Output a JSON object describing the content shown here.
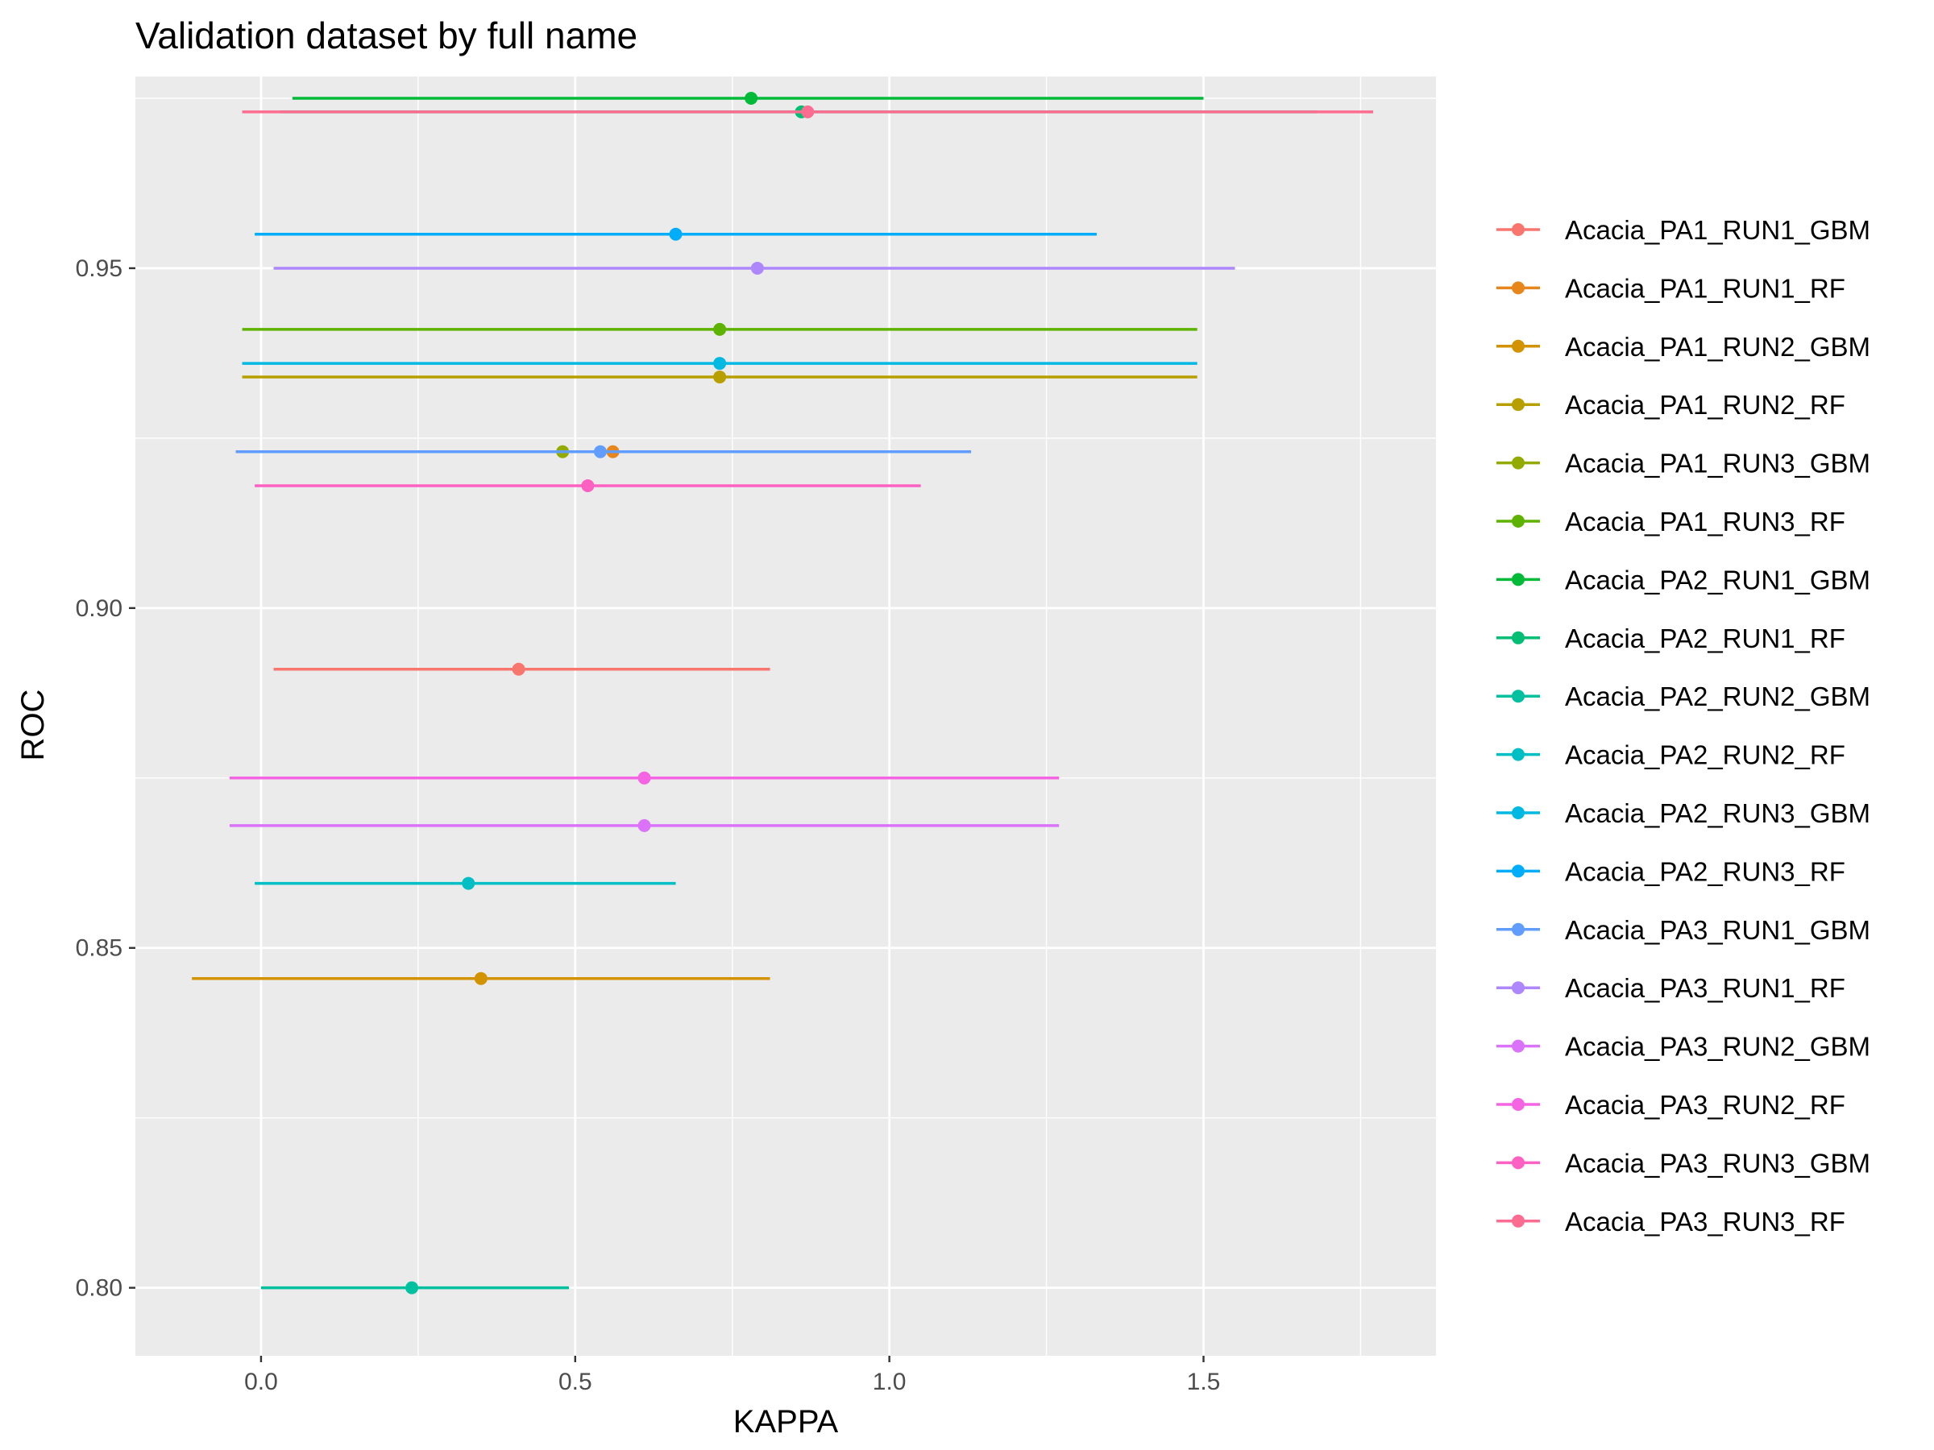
{
  "chart_data": {
    "type": "scatter",
    "title": "Validation dataset by full name",
    "xlabel": "KAPPA",
    "ylabel": "ROC",
    "xlim": [
      -0.2,
      1.87
    ],
    "ylim": [
      0.79,
      0.9782
    ],
    "x_ticks": [
      0.0,
      0.5,
      1.0,
      1.5
    ],
    "x_tick_labels": [
      "0.0",
      "0.5",
      "1.0",
      "1.5"
    ],
    "y_ticks": [
      0.8,
      0.85,
      0.9,
      0.95
    ],
    "y_tick_labels": [
      "0.80",
      "0.85",
      "0.90",
      "0.95"
    ],
    "grid": true,
    "legend_position": "right",
    "error_bars": "horizontal",
    "series": [
      {
        "name": "Acacia_PA1_RUN1_GBM",
        "color": "#F8766D",
        "kappa": 0.41,
        "roc": 0.891,
        "xmin": 0.02,
        "xmax": 0.81
      },
      {
        "name": "Acacia_PA1_RUN1_RF",
        "color": "#E7861B",
        "kappa": 0.56,
        "roc": 0.923,
        "xmin": -0.04,
        "xmax": 1.13
      },
      {
        "name": "Acacia_PA1_RUN2_GBM",
        "color": "#D39200",
        "kappa": 0.35,
        "roc": 0.8455,
        "xmin": -0.11,
        "xmax": 0.81
      },
      {
        "name": "Acacia_PA1_RUN2_RF",
        "color": "#B79F00",
        "kappa": 0.73,
        "roc": 0.934,
        "xmin": -0.03,
        "xmax": 1.49
      },
      {
        "name": "Acacia_PA1_RUN3_GBM",
        "color": "#93AA00",
        "kappa": 0.48,
        "roc": 0.923,
        "xmin": -0.04,
        "xmax": 1.13
      },
      {
        "name": "Acacia_PA1_RUN3_RF",
        "color": "#5EB300",
        "kappa": 0.73,
        "roc": 0.941,
        "xmin": -0.03,
        "xmax": 1.49
      },
      {
        "name": "Acacia_PA2_RUN1_GBM",
        "color": "#00BA38",
        "kappa": 0.78,
        "roc": 0.975,
        "xmin": 0.05,
        "xmax": 1.5
      },
      {
        "name": "Acacia_PA2_RUN1_RF",
        "color": "#00BF74",
        "kappa": 0.86,
        "roc": 0.973,
        "xmin": 0.03,
        "xmax": 1.68
      },
      {
        "name": "Acacia_PA2_RUN2_GBM",
        "color": "#00C19F",
        "kappa": 0.24,
        "roc": 0.8,
        "xmin": 0.0,
        "xmax": 0.49
      },
      {
        "name": "Acacia_PA2_RUN2_RF",
        "color": "#00BFC4",
        "kappa": 0.33,
        "roc": 0.8595,
        "xmin": -0.01,
        "xmax": 0.66
      },
      {
        "name": "Acacia_PA2_RUN3_GBM",
        "color": "#00B9E3",
        "kappa": 0.73,
        "roc": 0.936,
        "xmin": -0.03,
        "xmax": 1.49
      },
      {
        "name": "Acacia_PA2_RUN3_RF",
        "color": "#00ADFA",
        "kappa": 0.66,
        "roc": 0.955,
        "xmin": -0.01,
        "xmax": 1.33
      },
      {
        "name": "Acacia_PA3_RUN1_GBM",
        "color": "#619CFF",
        "kappa": 0.54,
        "roc": 0.923,
        "xmin": -0.04,
        "xmax": 1.13
      },
      {
        "name": "Acacia_PA3_RUN1_RF",
        "color": "#AE87FF",
        "kappa": 0.79,
        "roc": 0.95,
        "xmin": 0.02,
        "xmax": 1.55
      },
      {
        "name": "Acacia_PA3_RUN2_GBM",
        "color": "#DB72FB",
        "kappa": 0.61,
        "roc": 0.868,
        "xmin": -0.05,
        "xmax": 1.27
      },
      {
        "name": "Acacia_PA3_RUN2_RF",
        "color": "#F564E3",
        "kappa": 0.61,
        "roc": 0.875,
        "xmin": -0.05,
        "xmax": 1.27
      },
      {
        "name": "Acacia_PA3_RUN3_GBM",
        "color": "#FF61C3",
        "kappa": 0.52,
        "roc": 0.918,
        "xmin": -0.01,
        "xmax": 1.05
      },
      {
        "name": "Acacia_PA3_RUN3_RF",
        "color": "#FF6C91",
        "kappa": 0.87,
        "roc": 0.973,
        "xmin": -0.03,
        "xmax": 1.77
      }
    ]
  }
}
